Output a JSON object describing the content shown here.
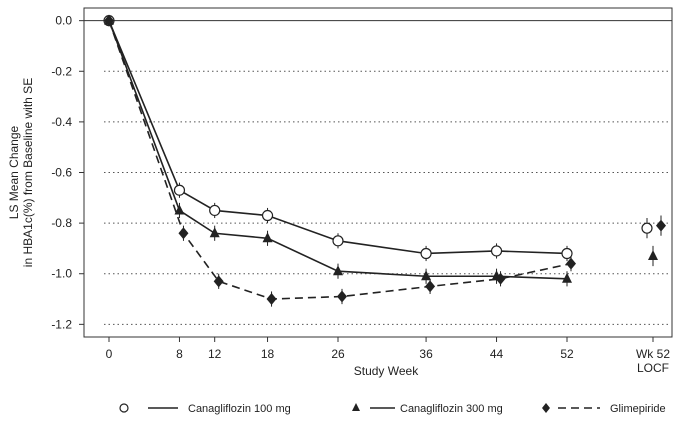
{
  "chart_data": {
    "type": "line",
    "title": "",
    "xlabel": "Study Week",
    "ylabel_line1": "LS Mean Change",
    "ylabel_line2": "in HBA1c(%) from Baseline with SE",
    "ylim": [
      -1.25,
      0.05
    ],
    "yticks": [
      "0.0",
      "-0.2",
      "-0.4",
      "-0.6",
      "-0.8",
      "-1.0",
      "-1.2"
    ],
    "ytick_values": [
      0.0,
      -0.2,
      -0.4,
      -0.6,
      -0.8,
      -1.0,
      -1.2
    ],
    "xticks": [
      "0",
      "8",
      "12",
      "18",
      "26",
      "36",
      "44",
      "52"
    ],
    "xtick_values": [
      0,
      8,
      12,
      18,
      26,
      36,
      44,
      52
    ],
    "locf_label_line1": "Wk 52",
    "locf_label_line2": "LOCF",
    "grid": "horizontal dotted",
    "legend_position": "bottom",
    "series": [
      {
        "name": "Canagliflozin 100 mg",
        "marker": "open-circle",
        "line": "solid",
        "color": "#222222",
        "points": [
          {
            "week": 0,
            "value": 0.0,
            "se": 0.01
          },
          {
            "week": 8,
            "value": -0.67,
            "se": 0.03
          },
          {
            "week": 12,
            "value": -0.75,
            "se": 0.03
          },
          {
            "week": 18,
            "value": -0.77,
            "se": 0.03
          },
          {
            "week": 26,
            "value": -0.87,
            "se": 0.03
          },
          {
            "week": 36,
            "value": -0.92,
            "se": 0.03
          },
          {
            "week": 44,
            "value": -0.91,
            "se": 0.03
          },
          {
            "week": 52,
            "value": -0.92,
            "se": 0.03
          }
        ],
        "locf": {
          "value": -0.82,
          "se": 0.04
        }
      },
      {
        "name": "Canagliflozin 300 mg",
        "marker": "filled-triangle",
        "line": "solid",
        "color": "#222222",
        "points": [
          {
            "week": 0,
            "value": 0.0,
            "se": 0.01
          },
          {
            "week": 8,
            "value": -0.75,
            "se": 0.03
          },
          {
            "week": 12,
            "value": -0.84,
            "se": 0.03
          },
          {
            "week": 18,
            "value": -0.86,
            "se": 0.03
          },
          {
            "week": 26,
            "value": -0.99,
            "se": 0.03
          },
          {
            "week": 36,
            "value": -1.01,
            "se": 0.03
          },
          {
            "week": 44,
            "value": -1.01,
            "se": 0.03
          },
          {
            "week": 52,
            "value": -1.02,
            "se": 0.03
          }
        ],
        "locf": {
          "value": -0.93,
          "se": 0.04
        }
      },
      {
        "name": "Glimepiride",
        "marker": "filled-diamond",
        "line": "dashed",
        "color": "#222222",
        "points": [
          {
            "week": 0,
            "value": 0.0,
            "se": 0.01
          },
          {
            "week": 8,
            "value": -0.84,
            "se": 0.03
          },
          {
            "week": 12,
            "value": -1.03,
            "se": 0.03
          },
          {
            "week": 18,
            "value": -1.1,
            "se": 0.03
          },
          {
            "week": 26,
            "value": -1.09,
            "se": 0.03
          },
          {
            "week": 36,
            "value": -1.05,
            "se": 0.03
          },
          {
            "week": 44,
            "value": -1.02,
            "se": 0.03
          },
          {
            "week": 52,
            "value": -0.96,
            "se": 0.03
          }
        ],
        "locf": {
          "value": -0.81,
          "se": 0.04
        }
      }
    ]
  }
}
